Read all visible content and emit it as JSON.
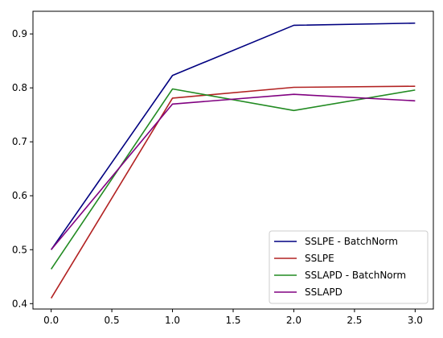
{
  "chart_data": {
    "type": "line",
    "title": "",
    "xlabel": "",
    "ylabel": "",
    "xlim": [
      -0.15,
      3.15
    ],
    "ylim": [
      0.39,
      0.942
    ],
    "x_ticks": [
      0.0,
      0.5,
      1.0,
      1.5,
      2.0,
      2.5,
      3.0
    ],
    "x_tick_labels": [
      "0.0",
      "0.5",
      "1.0",
      "1.5",
      "2.0",
      "2.5",
      "3.0"
    ],
    "y_ticks": [
      0.4,
      0.5,
      0.6,
      0.7,
      0.8,
      0.9
    ],
    "y_tick_labels": [
      "0.4",
      "0.5",
      "0.6",
      "0.7",
      "0.8",
      "0.9"
    ],
    "grid": false,
    "legend_position": "bottom-right",
    "x": [
      0,
      1,
      2,
      3
    ],
    "series": [
      {
        "name": "SSLPE - BatchNorm",
        "color": "#000080",
        "values": [
          0.5,
          0.823,
          0.916,
          0.92
        ]
      },
      {
        "name": "SSLPE",
        "color": "#b22222",
        "values": [
          0.41,
          0.781,
          0.801,
          0.803
        ]
      },
      {
        "name": "SSLAPD - BatchNorm",
        "color": "#228b22",
        "values": [
          0.464,
          0.798,
          0.758,
          0.796
        ]
      },
      {
        "name": "SSLAPD",
        "color": "#800080",
        "values": [
          0.5,
          0.77,
          0.788,
          0.776
        ]
      }
    ]
  }
}
